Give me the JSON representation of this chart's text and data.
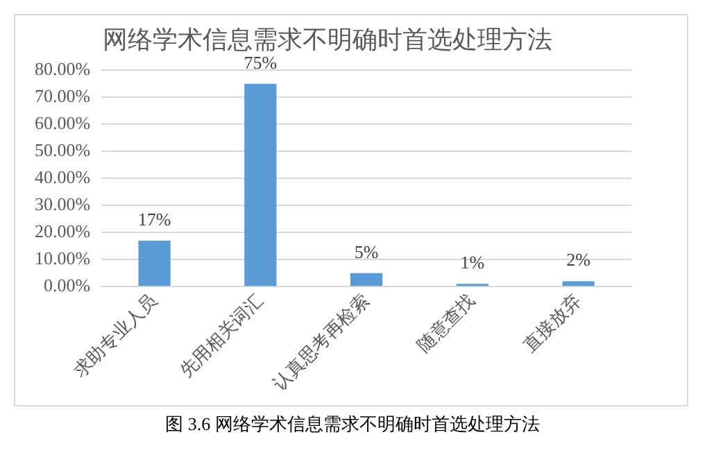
{
  "chart_data": {
    "type": "bar",
    "title": "网络学术信息需求不明确时首选处理方法",
    "categories": [
      "求助专业人员",
      "先用相关词汇",
      "认真思考再检索",
      "随意查找",
      "直接放弃"
    ],
    "values": [
      17,
      75,
      5,
      1,
      2
    ],
    "value_labels": [
      "17%",
      "75%",
      "5%",
      "1%",
      "2%"
    ],
    "color": "#5b9bd5",
    "ylim": [
      0,
      80
    ],
    "yticks": [
      {
        "value": 0,
        "label": "0.00%"
      },
      {
        "value": 10,
        "label": "10.00%"
      },
      {
        "value": 20,
        "label": "20.00%"
      },
      {
        "value": 30,
        "label": "30.00%"
      },
      {
        "value": 40,
        "label": "40.00%"
      },
      {
        "value": 50,
        "label": "50.00%"
      },
      {
        "value": 60,
        "label": "60.00%"
      },
      {
        "value": 70,
        "label": "70.00%"
      },
      {
        "value": 80,
        "label": "80.00%"
      }
    ],
    "grid": "y",
    "annotations": [
      "图 3.6 网络学术信息需求不明确时首选处理方法"
    ]
  }
}
